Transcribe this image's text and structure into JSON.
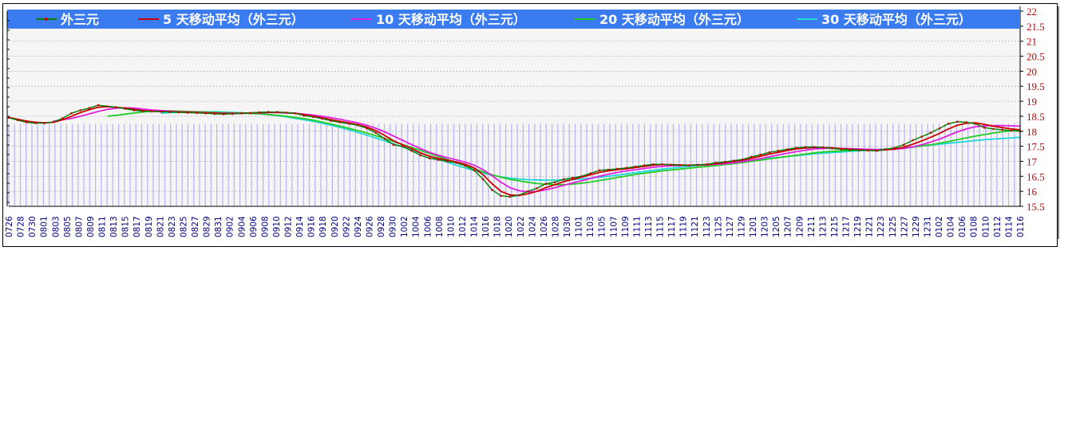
{
  "chart_data": {
    "type": "line",
    "title": "",
    "xlabel": "",
    "ylabel": "",
    "ylim": [
      15.5,
      22
    ],
    "y_ticks": [
      "22",
      "21.5",
      "21",
      "20.5",
      "20",
      "19.5",
      "19",
      "18.5",
      "18",
      "17.5",
      "17",
      "16.5",
      "16",
      "15.5"
    ],
    "grid": "horizontal dashed + vertical day bars",
    "legend_position": "top",
    "x_labels": [
      "0726",
      "0728",
      "0730",
      "0801",
      "0803",
      "0805",
      "0807",
      "0809",
      "0811",
      "0813",
      "0815",
      "0817",
      "0819",
      "0821",
      "0823",
      "0825",
      "0827",
      "0829",
      "0831",
      "0902",
      "0904",
      "0906",
      "0908",
      "0910",
      "0912",
      "0914",
      "0916",
      "0918",
      "0920",
      "0922",
      "0924",
      "0926",
      "0928",
      "0930",
      "1002",
      "1004",
      "1006",
      "1008",
      "1010",
      "1012",
      "1014",
      "1016",
      "1018",
      "1020",
      "1022",
      "1024",
      "1026",
      "1028",
      "1030",
      "1101",
      "1103",
      "1105",
      "1107",
      "1109",
      "1111",
      "1113",
      "1115",
      "1117",
      "1119",
      "1121",
      "1123",
      "1125",
      "1127",
      "1129",
      "1201",
      "1203",
      "1205",
      "1207",
      "1209",
      "1211",
      "1213",
      "1215",
      "1217",
      "1219",
      "1221",
      "1223",
      "1225",
      "1227",
      "1229",
      "1231",
      "0102",
      "0104",
      "0106",
      "0108",
      "0110",
      "0112",
      "0114",
      "0116"
    ],
    "series": [
      {
        "name": "外三元",
        "color": "#008000",
        "marker_color": "#cc0000",
        "values": [
          18.45,
          18.37,
          18.3,
          18.27,
          18.27,
          18.31,
          18.43,
          18.6,
          18.7,
          18.77,
          18.87,
          18.83,
          18.8,
          18.75,
          18.7,
          18.67,
          18.66,
          18.65,
          18.64,
          18.63,
          18.62,
          18.61,
          18.6,
          18.58,
          18.57,
          18.58,
          18.6,
          18.61,
          18.63,
          18.64,
          18.64,
          18.62,
          18.6,
          18.52,
          18.48,
          18.42,
          18.35,
          18.3,
          18.25,
          18.2,
          18.1,
          17.95,
          17.75,
          17.55,
          17.5,
          17.35,
          17.2,
          17.1,
          17.05,
          17.0,
          16.95,
          16.85,
          16.7,
          16.4,
          16.05,
          15.85,
          15.82,
          15.87,
          16.0,
          16.1,
          16.25,
          16.3,
          16.4,
          16.45,
          16.5,
          16.6,
          16.7,
          16.72,
          16.75,
          16.78,
          16.82,
          16.86,
          16.9,
          16.9,
          16.88,
          16.87,
          16.86,
          16.88,
          16.9,
          16.95,
          16.98,
          17.02,
          17.06,
          17.15,
          17.22,
          17.3,
          17.35,
          17.4,
          17.45,
          17.47,
          17.48,
          17.46,
          17.43,
          17.4,
          17.38,
          17.37,
          17.36,
          17.35,
          17.4,
          17.45,
          17.55,
          17.7,
          17.82,
          17.95,
          18.1,
          18.25,
          18.32,
          18.3,
          18.25,
          18.12,
          18.08,
          18.05,
          18.02,
          18.0
        ]
      },
      {
        "name": "5 天移动平均（外三元）",
        "color": "#cc0000",
        "values": [
          18.46,
          18.4,
          18.34,
          18.3,
          18.28,
          18.3,
          18.38,
          18.5,
          18.62,
          18.72,
          18.8,
          18.82,
          18.8,
          18.77,
          18.73,
          18.69,
          18.67,
          18.66,
          18.65,
          18.64,
          18.63,
          18.62,
          18.61,
          18.6,
          18.59,
          18.59,
          18.6,
          18.61,
          18.62,
          18.63,
          18.63,
          18.62,
          18.6,
          18.55,
          18.5,
          18.45,
          18.39,
          18.33,
          18.28,
          18.22,
          18.14,
          18.02,
          17.86,
          17.68,
          17.55,
          17.42,
          17.28,
          17.17,
          17.1,
          17.04,
          16.98,
          16.9,
          16.78,
          16.55,
          16.25,
          16.0,
          15.88,
          15.86,
          15.92,
          16.0,
          16.12,
          16.22,
          16.32,
          16.4,
          16.47,
          16.55,
          16.63,
          16.68,
          16.72,
          16.75,
          16.79,
          16.83,
          16.87,
          16.89,
          16.89,
          16.88,
          16.87,
          16.88,
          16.89,
          16.92,
          16.96,
          17.0,
          17.04,
          17.1,
          17.17,
          17.24,
          17.3,
          17.36,
          17.41,
          17.44,
          17.46,
          17.46,
          17.45,
          17.42,
          17.4,
          17.38,
          17.37,
          17.36,
          17.38,
          17.41,
          17.47,
          17.57,
          17.68,
          17.8,
          17.93,
          18.08,
          18.2,
          18.27,
          18.28,
          18.23,
          18.17,
          18.12,
          18.08,
          18.05
        ]
      },
      {
        "name": "10 天移动平均（外三元）",
        "color": "#e020e0",
        "values": [
          null,
          null,
          null,
          null,
          null,
          18.34,
          18.38,
          18.43,
          18.5,
          18.58,
          18.66,
          18.73,
          18.77,
          18.78,
          18.77,
          18.74,
          18.71,
          18.69,
          18.67,
          18.65,
          18.64,
          18.63,
          18.62,
          18.61,
          18.6,
          18.6,
          18.6,
          18.61,
          18.61,
          18.62,
          18.62,
          18.61,
          18.6,
          18.57,
          18.54,
          18.5,
          18.45,
          18.4,
          18.34,
          18.28,
          18.2,
          18.1,
          17.98,
          17.84,
          17.7,
          17.56,
          17.42,
          17.3,
          17.2,
          17.12,
          17.05,
          16.97,
          16.87,
          16.72,
          16.52,
          16.3,
          16.12,
          16.02,
          15.98,
          16.0,
          16.05,
          16.12,
          16.2,
          16.28,
          16.35,
          16.43,
          16.5,
          16.57,
          16.63,
          16.68,
          16.72,
          16.76,
          16.8,
          16.83,
          16.85,
          16.86,
          16.87,
          16.87,
          16.88,
          16.9,
          16.92,
          16.95,
          16.99,
          17.04,
          17.09,
          17.15,
          17.21,
          17.27,
          17.32,
          17.37,
          17.41,
          17.43,
          17.44,
          17.43,
          17.42,
          17.41,
          17.4,
          17.39,
          17.39,
          17.4,
          17.43,
          17.48,
          17.55,
          17.64,
          17.74,
          17.86,
          17.98,
          18.08,
          18.15,
          18.18,
          18.19,
          18.19,
          18.18,
          18.17
        ]
      },
      {
        "name": "20 天移动平均（外三元）",
        "color": "#22cc22",
        "values": [
          null,
          null,
          null,
          null,
          null,
          null,
          null,
          null,
          null,
          null,
          null,
          18.5,
          18.53,
          18.57,
          18.61,
          18.64,
          18.67,
          18.68,
          18.68,
          18.67,
          18.66,
          18.65,
          18.64,
          18.63,
          18.62,
          18.61,
          18.6,
          18.59,
          18.58,
          18.56,
          18.53,
          18.5,
          18.46,
          18.42,
          18.37,
          18.31,
          18.24,
          18.17,
          18.1,
          18.02,
          17.94,
          17.85,
          17.76,
          17.66,
          17.56,
          17.46,
          17.36,
          17.26,
          17.16,
          17.06,
          16.96,
          16.86,
          16.76,
          16.65,
          16.55,
          16.47,
          16.4,
          16.35,
          16.3,
          16.26,
          16.24,
          16.22,
          16.22,
          16.24,
          16.27,
          16.31,
          16.36,
          16.41,
          16.46,
          16.51,
          16.56,
          16.6,
          16.64,
          16.68,
          16.71,
          16.74,
          16.77,
          16.8,
          16.83,
          16.86,
          16.89,
          16.92,
          16.96,
          17.0,
          17.04,
          17.08,
          17.12,
          17.16,
          17.2,
          17.24,
          17.28,
          17.31,
          17.33,
          17.35,
          17.36,
          17.37,
          17.38,
          17.39,
          17.4,
          17.42,
          17.44,
          17.47,
          17.51,
          17.55,
          17.6,
          17.66,
          17.72,
          17.78,
          17.84,
          17.89,
          17.94,
          17.98,
          18.02,
          18.05
        ]
      },
      {
        "name": "30 天移动平均（外三元）",
        "color": "#20d8d8",
        "values": [
          null,
          null,
          null,
          null,
          null,
          null,
          null,
          null,
          null,
          null,
          null,
          null,
          null,
          null,
          null,
          null,
          null,
          18.6,
          18.62,
          18.63,
          18.64,
          18.65,
          18.65,
          18.65,
          18.64,
          18.63,
          18.62,
          18.6,
          18.58,
          18.55,
          18.52,
          18.48,
          18.43,
          18.38,
          18.33,
          18.27,
          18.2,
          18.13,
          18.05,
          17.96,
          17.87,
          17.78,
          17.68,
          17.58,
          17.48,
          17.37,
          17.27,
          17.17,
          17.07,
          16.97,
          16.87,
          16.78,
          16.69,
          16.61,
          16.54,
          16.48,
          16.44,
          16.41,
          16.39,
          16.38,
          16.37,
          16.37,
          16.38,
          16.39,
          16.41,
          16.44,
          16.47,
          16.5,
          16.54,
          16.58,
          16.62,
          16.66,
          16.7,
          16.74,
          16.77,
          16.8,
          16.83,
          16.86,
          16.89,
          16.92,
          16.95,
          16.98,
          17.01,
          17.04,
          17.07,
          17.1,
          17.13,
          17.16,
          17.19,
          17.22,
          17.25,
          17.27,
          17.29,
          17.31,
          17.33,
          17.35,
          17.37,
          17.39,
          17.41,
          17.43,
          17.45,
          17.48,
          17.51,
          17.54,
          17.57,
          17.6,
          17.63,
          17.66,
          17.69,
          17.72,
          17.74,
          17.76,
          17.78,
          17.8
        ]
      }
    ]
  },
  "style": {
    "legend_bg": "#3a7cf0",
    "legend_text": "#ffffff",
    "axis_label_color": "#cc0000",
    "x_label_color": "#000080",
    "day_bar_color": "#b9b9f5",
    "grid_color": "#8888cc",
    "plot_bg": "#f6f4f4"
  }
}
